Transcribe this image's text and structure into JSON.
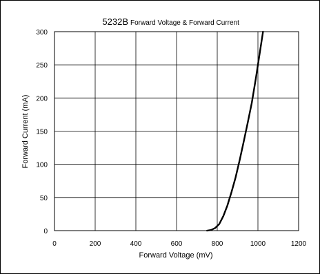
{
  "chart_data": {
    "type": "line",
    "title": "5232B",
    "subtitle": "Forward Voltage & Forward Current",
    "xlabel": "Forward Voltage (mV)",
    "ylabel": "Forward Current (mA)",
    "xlim": [
      0,
      1200
    ],
    "ylim": [
      0,
      300
    ],
    "x_ticks": [
      0,
      200,
      400,
      600,
      800,
      1000,
      1200
    ],
    "y_ticks": [
      0,
      50,
      100,
      150,
      200,
      250,
      300
    ],
    "grid": true,
    "series": [
      {
        "x": [
          750,
          770,
          790,
          810,
          830,
          850,
          870,
          890,
          910,
          930,
          950,
          970,
          990,
          1010,
          1025
        ],
        "y": [
          0,
          1,
          4,
          10,
          22,
          38,
          58,
          80,
          106,
          134,
          163,
          193,
          230,
          270,
          300
        ]
      }
    ]
  },
  "colors": {
    "line": "#000000",
    "grid": "#000000",
    "background": "#ffffff"
  }
}
